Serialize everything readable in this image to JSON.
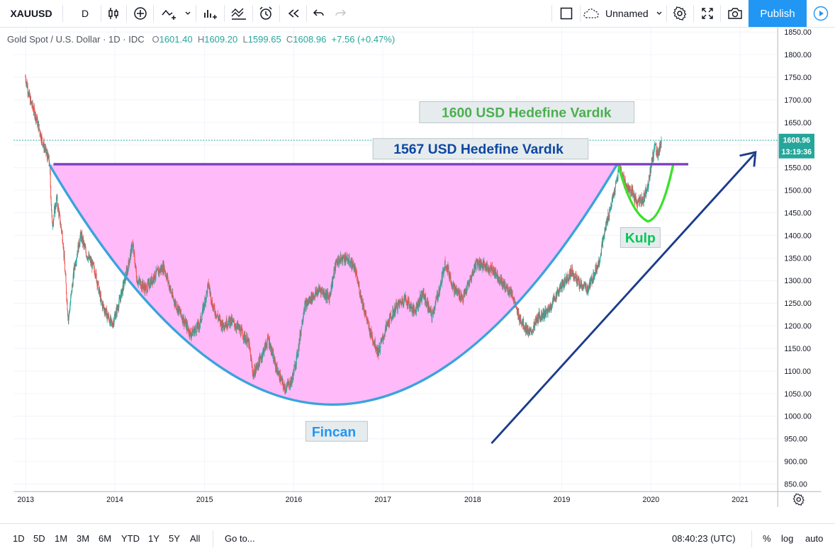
{
  "toolbar": {
    "symbol": "XAUUSD",
    "interval": "D",
    "layout_name": "Unnamed",
    "publish_label": "Publish"
  },
  "legend": {
    "title": "Gold Spot / U.S. Dollar · 1D · IDC",
    "o_label": "O",
    "o_value": "1601.40",
    "h_label": "H",
    "h_value": "1609.20",
    "l_label": "L",
    "l_value": "1599.65",
    "c_label": "C",
    "c_value": "1608.96",
    "change": "+7.56 (+0.47%)"
  },
  "chart_data": {
    "type": "candlestick",
    "symbol": "XAUUSD",
    "y_axis": {
      "ticks": [
        "1850.00",
        "1800.00",
        "1750.00",
        "1700.00",
        "1650.00",
        "1600.00",
        "1550.00",
        "1500.00",
        "1450.00",
        "1400.00",
        "1350.00",
        "1300.00",
        "1250.00",
        "1200.00",
        "1150.00",
        "1100.00",
        "1050.00",
        "1000.00",
        "950.00",
        "900.00",
        "850.00"
      ],
      "range": [
        835,
        1855
      ],
      "price_label": "1608.96",
      "countdown_label": "13:19:36"
    },
    "x_axis": {
      "ticks": [
        "2013",
        "2014",
        "2015",
        "2016",
        "2017",
        "2018",
        "2019",
        "2020",
        "2021"
      ]
    },
    "last_price": 1608.96,
    "price_path": [
      [
        2013.0,
        1750
      ],
      [
        2013.05,
        1700
      ],
      [
        2013.12,
        1660
      ],
      [
        2013.2,
        1600
      ],
      [
        2013.27,
        1560
      ],
      [
        2013.3,
        1420
      ],
      [
        2013.35,
        1480
      ],
      [
        2013.42,
        1390
      ],
      [
        2013.48,
        1210
      ],
      [
        2013.55,
        1330
      ],
      [
        2013.62,
        1400
      ],
      [
        2013.68,
        1360
      ],
      [
        2013.78,
        1320
      ],
      [
        2013.85,
        1250
      ],
      [
        2013.97,
        1200
      ],
      [
        2014.05,
        1250
      ],
      [
        2014.15,
        1330
      ],
      [
        2014.2,
        1380
      ],
      [
        2014.25,
        1300
      ],
      [
        2014.35,
        1280
      ],
      [
        2014.45,
        1310
      ],
      [
        2014.55,
        1330
      ],
      [
        2014.65,
        1260
      ],
      [
        2014.75,
        1220
      ],
      [
        2014.85,
        1180
      ],
      [
        2014.95,
        1200
      ],
      [
        2015.05,
        1290
      ],
      [
        2015.1,
        1240
      ],
      [
        2015.2,
        1200
      ],
      [
        2015.3,
        1210
      ],
      [
        2015.4,
        1190
      ],
      [
        2015.5,
        1160
      ],
      [
        2015.55,
        1090
      ],
      [
        2015.62,
        1120
      ],
      [
        2015.72,
        1170
      ],
      [
        2015.8,
        1110
      ],
      [
        2015.9,
        1060
      ],
      [
        2015.98,
        1075
      ],
      [
        2016.05,
        1140
      ],
      [
        2016.12,
        1240
      ],
      [
        2016.2,
        1260
      ],
      [
        2016.3,
        1280
      ],
      [
        2016.4,
        1260
      ],
      [
        2016.48,
        1340
      ],
      [
        2016.58,
        1350
      ],
      [
        2016.68,
        1330
      ],
      [
        2016.75,
        1270
      ],
      [
        2016.85,
        1190
      ],
      [
        2016.95,
        1140
      ],
      [
        2017.05,
        1200
      ],
      [
        2017.15,
        1240
      ],
      [
        2017.25,
        1260
      ],
      [
        2017.35,
        1230
      ],
      [
        2017.45,
        1270
      ],
      [
        2017.55,
        1220
      ],
      [
        2017.65,
        1290
      ],
      [
        2017.7,
        1340
      ],
      [
        2017.8,
        1280
      ],
      [
        2017.9,
        1260
      ],
      [
        2017.98,
        1300
      ],
      [
        2018.05,
        1340
      ],
      [
        2018.15,
        1330
      ],
      [
        2018.25,
        1320
      ],
      [
        2018.35,
        1290
      ],
      [
        2018.45,
        1270
      ],
      [
        2018.5,
        1230
      ],
      [
        2018.58,
        1200
      ],
      [
        2018.65,
        1180
      ],
      [
        2018.75,
        1220
      ],
      [
        2018.85,
        1230
      ],
      [
        2018.95,
        1270
      ],
      [
        2019.05,
        1300
      ],
      [
        2019.12,
        1320
      ],
      [
        2019.2,
        1290
      ],
      [
        2019.3,
        1280
      ],
      [
        2019.42,
        1340
      ],
      [
        2019.5,
        1420
      ],
      [
        2019.6,
        1500
      ],
      [
        2019.65,
        1550
      ],
      [
        2019.72,
        1510
      ],
      [
        2019.8,
        1490
      ],
      [
        2019.85,
        1470
      ],
      [
        2019.92,
        1480
      ],
      [
        2019.98,
        1520
      ],
      [
        2020.02,
        1570
      ],
      [
        2020.05,
        1600
      ],
      [
        2020.08,
        1575
      ],
      [
        2020.12,
        1609
      ]
    ],
    "annotations": [
      {
        "text": "1600 USD Hedefine Vardık",
        "color": "#4caf50"
      },
      {
        "text": "1567 USD Hedefine Vardık",
        "color": "#0d47a1"
      },
      {
        "text": "Kulp",
        "color": "#00c853"
      },
      {
        "text": "Fincan",
        "color": "#2196f3"
      }
    ]
  },
  "bottombar": {
    "ranges": [
      "1D",
      "5D",
      "1M",
      "3M",
      "6M",
      "YTD",
      "1Y",
      "5Y",
      "All"
    ],
    "goto_label": "Go to...",
    "clock": "08:40:23 (UTC)",
    "percent_label": "%",
    "log_label": "log",
    "auto_label": "auto"
  },
  "colors": {
    "up": "#26a69a",
    "down": "#ef5350",
    "cup_fill": "#ffbaf9",
    "cup_line": "#3aa3db",
    "handle_line": "#3de02c",
    "resistance": "#7b3fbf",
    "trend_arrow": "#1c3c8c",
    "accent": "#2196f3"
  }
}
